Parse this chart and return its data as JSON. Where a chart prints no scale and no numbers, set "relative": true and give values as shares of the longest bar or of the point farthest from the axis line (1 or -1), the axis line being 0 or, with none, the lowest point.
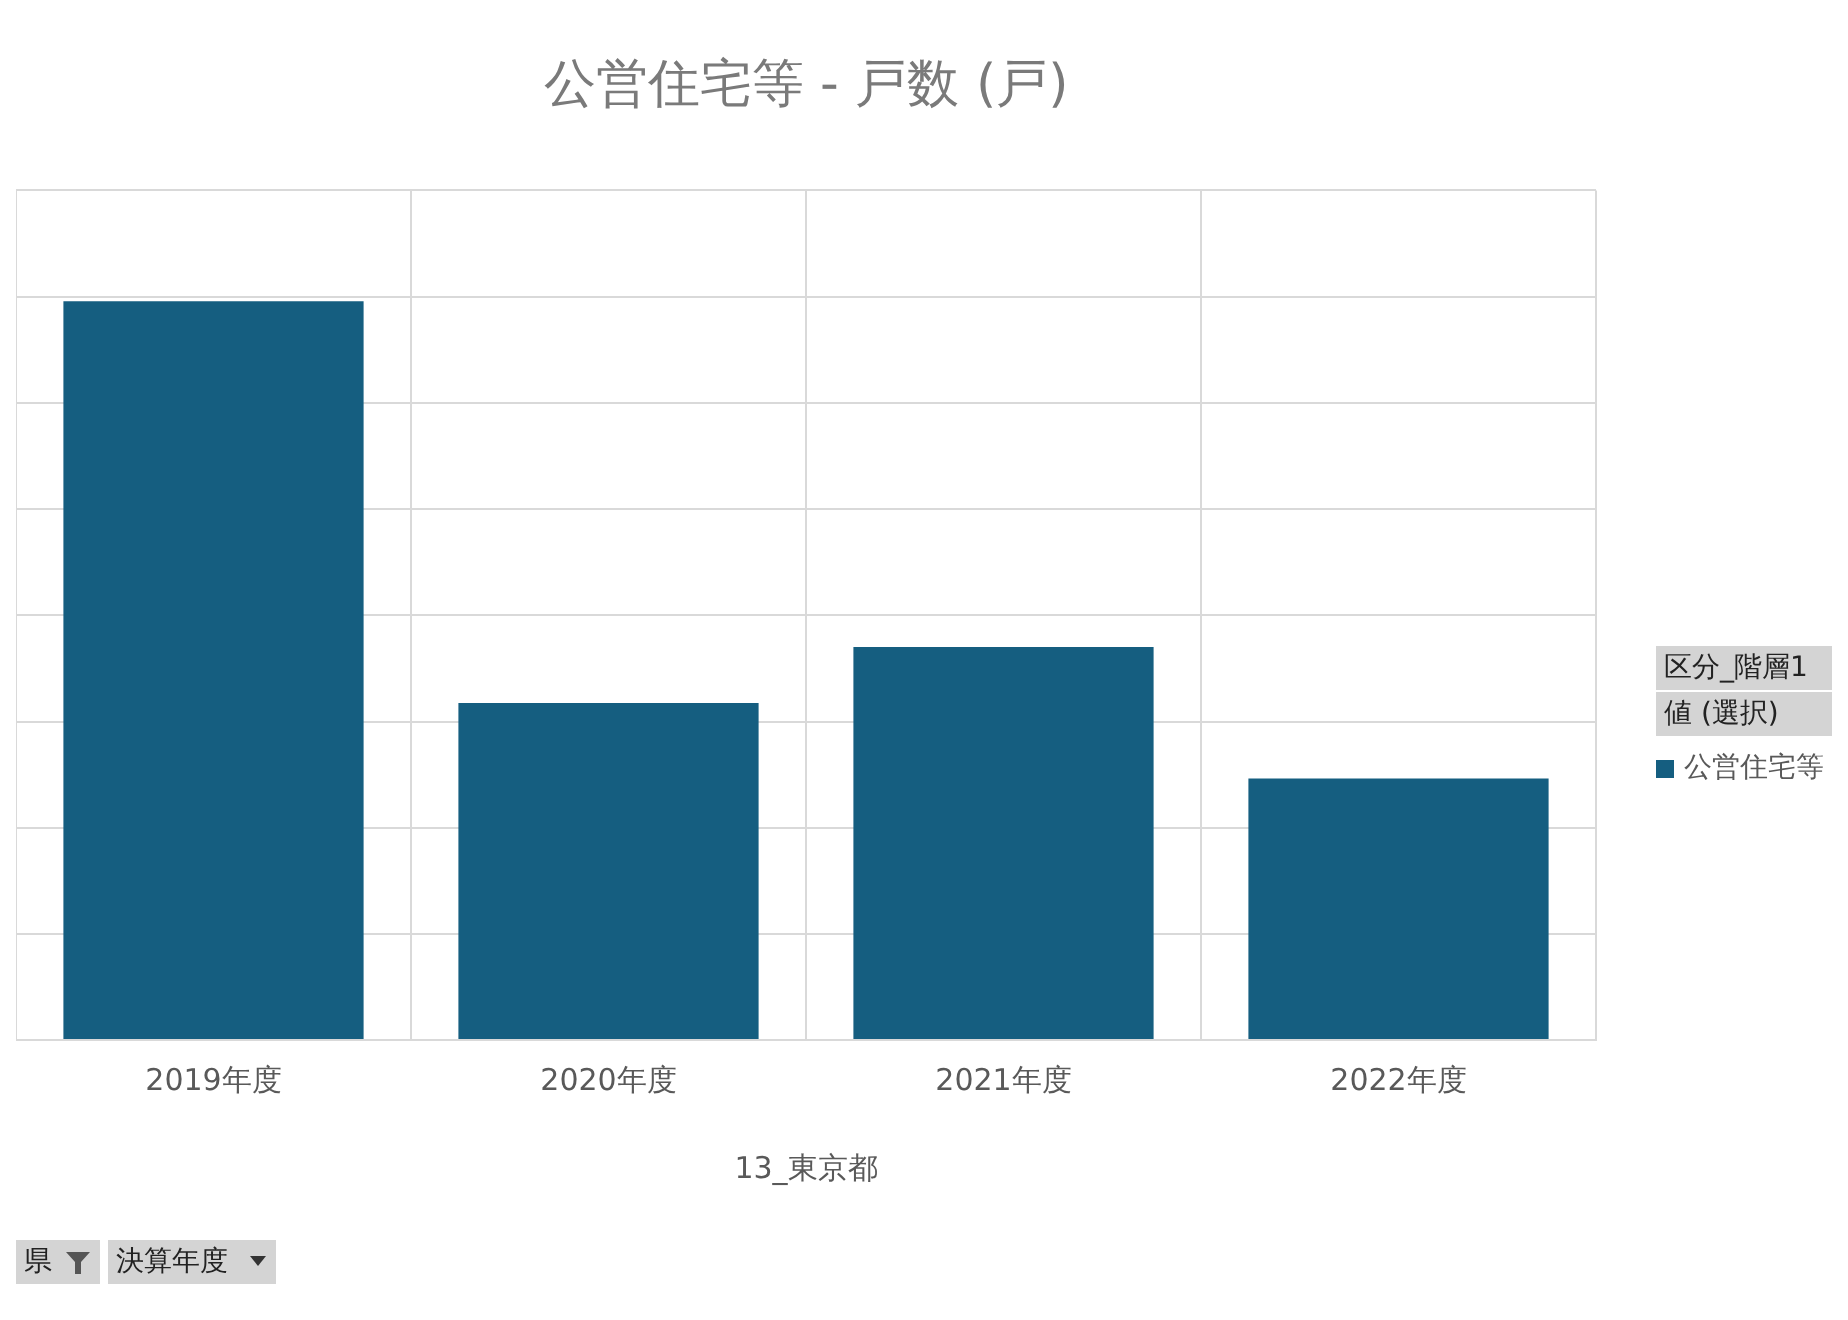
{
  "chart_data": {
    "type": "bar",
    "title": "公営住宅等 - 戸数 (戸)",
    "xlabel": "13_東京都",
    "legend_title": "区分_階層1",
    "categories": [
      "2019年度",
      "2020年度",
      "2021年度",
      "2022年度"
    ],
    "series": [
      {
        "name": "公営住宅等",
        "color": "#155e80",
        "values": [
          1,
          0.456,
          0.532,
          0.354
        ]
      }
    ],
    "relative": true,
    "grid": true,
    "legend": "right",
    "annotations": [
      "値 (選択)",
      "県",
      "決算年度"
    ]
  }
}
